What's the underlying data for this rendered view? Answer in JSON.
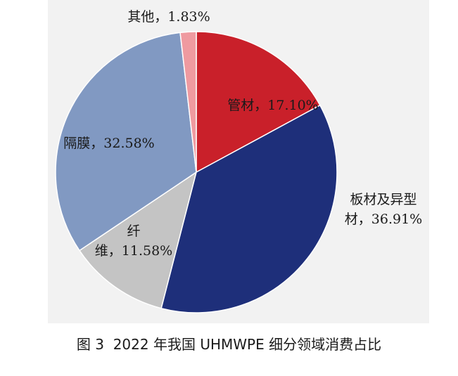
{
  "chart_data": {
    "type": "pie",
    "title": "",
    "slices": [
      {
        "label_lines": [
          "管材，17.10%"
        ],
        "value": 17.1,
        "color": "#c9202a"
      },
      {
        "label_lines": [
          "板材及异型",
          "材，36.91%"
        ],
        "value": 36.91,
        "color": "#1e2f7a"
      },
      {
        "label_lines": [
          "纤",
          "维，11.58%"
        ],
        "value": 11.58,
        "color": "#c4c4c4"
      },
      {
        "label_lines": [
          "隔膜，32.58%"
        ],
        "value": 32.58,
        "color": "#8199c2"
      },
      {
        "label_lines": [
          "其他，1.83%"
        ],
        "value": 1.83,
        "color": "#ef9aa0"
      }
    ],
    "start": "12 o'clock",
    "direction": "clockwise",
    "background": "#f2f2f2"
  },
  "caption": "图 3  2022 年我国 UHMWPE 细分领域消费占比"
}
